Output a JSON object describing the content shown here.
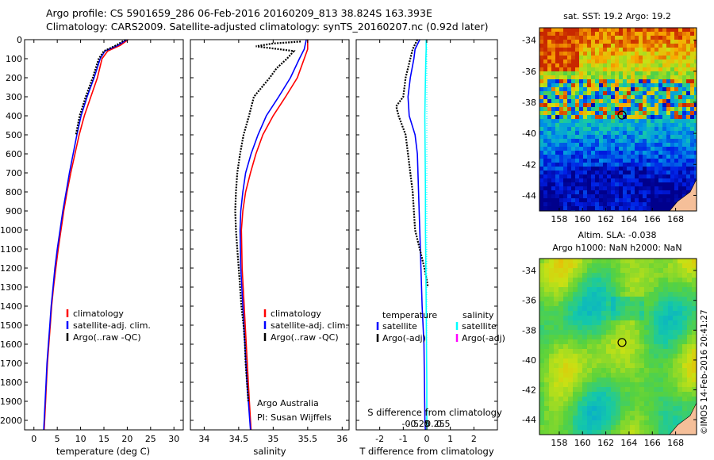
{
  "header": {
    "line1": "Argo profile: CS 5901659_286 06-Feb-2016 20160209_813 38.824S 163.393E",
    "line2": "Climatology: CARS2009. Satellite-adjusted climatology: synTS_20160207.nc (0.92d later)"
  },
  "colors": {
    "climatology": "#ff0000",
    "satellite": "#0000ff",
    "argo": "#000000",
    "sal_satellite": "#00ffff",
    "sal_argo": "#ff00ff",
    "land": "#f5bf99"
  },
  "chart_data": [
    {
      "type": "line",
      "name": "temperature-profile",
      "xlabel": "temperature (deg C)",
      "ylim": [
        2050,
        0
      ],
      "xlim": [
        -2,
        32
      ],
      "x_ticks": [
        "0",
        "5",
        "10",
        "15",
        "20",
        "25",
        "30"
      ],
      "x_tick_values": [
        0,
        5,
        10,
        15,
        20,
        25,
        30
      ],
      "y_ticks": [
        0,
        100,
        200,
        300,
        400,
        500,
        600,
        700,
        800,
        900,
        1000,
        1100,
        1200,
        1300,
        1400,
        1500,
        1600,
        1700,
        1800,
        1900,
        2000
      ],
      "series": [
        {
          "name": "climatology",
          "color": "#ff0000",
          "depth": [
            0,
            30,
            60,
            100,
            200,
            300,
            400,
            500,
            600,
            700,
            800,
            900,
            1000,
            1100,
            1200,
            1300,
            1400,
            1500,
            1600,
            1700,
            1800,
            1900,
            2000,
            2050
          ],
          "values": [
            20.2,
            18.5,
            15.8,
            14.6,
            13.6,
            12.2,
            10.8,
            9.7,
            8.8,
            7.9,
            7.1,
            6.4,
            5.8,
            5.2,
            4.7,
            4.2,
            3.8,
            3.5,
            3.2,
            2.9,
            2.7,
            2.5,
            2.3,
            2.2
          ]
        },
        {
          "name": "satellite-adj. clim.",
          "color": "#0000ff",
          "depth": [
            0,
            30,
            60,
            100,
            200,
            300,
            400,
            500,
            600,
            700,
            800,
            900,
            1000,
            1100,
            1200,
            1300,
            1400,
            1500,
            1600,
            1700,
            1800,
            1900,
            2000,
            2050
          ],
          "values": [
            19.9,
            18.0,
            15.2,
            14.2,
            12.9,
            11.4,
            10.1,
            9.2,
            8.4,
            7.6,
            6.9,
            6.2,
            5.6,
            5.0,
            4.5,
            4.1,
            3.7,
            3.4,
            3.1,
            2.8,
            2.6,
            2.4,
            2.2,
            2.1
          ]
        },
        {
          "name": "Argo(..raw -QC)",
          "color": "#000000",
          "depth": [
            0,
            30,
            60,
            100,
            200,
            300,
            400,
            500
          ],
          "values": [
            19.6,
            17.6,
            15.0,
            13.9,
            12.6,
            11.1,
            9.8,
            9.0
          ]
        }
      ],
      "legend": [
        "climatology",
        "satellite-adj. clim.",
        "Argo(..raw -QC)"
      ]
    },
    {
      "type": "line",
      "name": "salinity-profile",
      "xlabel": "salinity",
      "ylim": [
        2050,
        0
      ],
      "xlim": [
        33.8,
        36.1
      ],
      "x_ticks": [
        "34",
        "34.5",
        "35",
        "35.5",
        "36"
      ],
      "x_tick_values": [
        34,
        34.5,
        35,
        35.5,
        36
      ],
      "series": [
        {
          "name": "climatology",
          "color": "#ff0000",
          "depth": [
            0,
            50,
            100,
            200,
            300,
            400,
            500,
            600,
            700,
            800,
            900,
            1000,
            1200,
            1400,
            1600,
            1800,
            2000,
            2050
          ],
          "values": [
            35.5,
            35.5,
            35.45,
            35.35,
            35.18,
            35.0,
            34.85,
            34.75,
            34.67,
            34.6,
            34.56,
            34.54,
            34.55,
            34.58,
            34.61,
            34.64,
            34.67,
            34.68
          ]
        },
        {
          "name": "satellite-adj. clim.",
          "color": "#0000ff",
          "depth": [
            0,
            50,
            100,
            200,
            300,
            400,
            500,
            600,
            700,
            800,
            900,
            1000,
            1200,
            1400,
            1600,
            1800,
            2000,
            2050
          ],
          "values": [
            35.48,
            35.45,
            35.38,
            35.25,
            35.08,
            34.9,
            34.78,
            34.68,
            34.6,
            34.56,
            34.53,
            34.52,
            34.53,
            34.56,
            34.59,
            34.62,
            34.66,
            34.67
          ]
        },
        {
          "name": "Argo(..raw -QC)",
          "color": "#000000",
          "depth": [
            10,
            20,
            35,
            60,
            100,
            150,
            200,
            300,
            400,
            500,
            600,
            700,
            800,
            900,
            1000,
            1100,
            1200,
            1300,
            1400,
            1500,
            1600,
            1700,
            1800,
            1900
          ],
          "values": [
            35.4,
            35.0,
            34.75,
            35.3,
            35.2,
            35.05,
            34.95,
            34.72,
            34.65,
            34.57,
            34.52,
            34.48,
            34.46,
            34.45,
            34.46,
            34.48,
            34.5,
            34.52,
            34.54,
            34.57,
            34.59,
            34.6,
            34.62,
            34.64
          ]
        }
      ],
      "legend": [
        "climatology",
        "satellite-adj. clim.",
        "Argo(..raw -QC)"
      ],
      "annotations": [
        "Argo Australia",
        "PI: Susan Wijffels"
      ]
    },
    {
      "type": "line",
      "name": "difference-profile",
      "xlabel": "T difference from climatology",
      "x2label": "S difference from climatology",
      "ylim": [
        2050,
        0
      ],
      "xlim": [
        -3,
        3
      ],
      "x_ticks": [
        "-2",
        "-1",
        "0",
        "1",
        "2"
      ],
      "x_tick_values": [
        -2,
        -1,
        0,
        1,
        2
      ],
      "x2_ticks": [
        "-0.5",
        "-0.25",
        "0",
        "0.25",
        "0.5"
      ],
      "x2_tick_values": [
        -0.5,
        -0.25,
        0,
        0.25,
        0.5
      ],
      "series": [
        {
          "name": "temperature satellite",
          "color": "#0000ff",
          "depth": [
            0,
            50,
            100,
            200,
            300,
            400,
            500,
            600,
            800,
            1000,
            1200,
            1400,
            1600,
            1800,
            2000,
            2050
          ],
          "values": [
            -0.3,
            -0.5,
            -0.55,
            -0.7,
            -0.8,
            -0.75,
            -0.5,
            -0.4,
            -0.35,
            -0.3,
            -0.25,
            -0.2,
            -0.12,
            -0.1,
            -0.08,
            -0.06
          ]
        },
        {
          "name": "temperature Argo(-adj)",
          "color": "#000000",
          "depth": [
            0,
            50,
            100,
            200,
            300,
            350,
            400,
            500,
            600,
            700,
            800,
            900,
            1000,
            1100,
            1200,
            1300
          ],
          "values": [
            -0.4,
            -0.6,
            -0.7,
            -0.9,
            -1.0,
            -1.3,
            -1.2,
            -0.9,
            -0.8,
            -0.7,
            -0.6,
            -0.55,
            -0.5,
            -0.3,
            -0.1,
            0.05
          ]
        },
        {
          "name": "salinity satellite",
          "color": "#00ffff",
          "depth": [
            0,
            50,
            100,
            200,
            400,
            600,
            800,
            1000,
            1200,
            1400,
            1600,
            1800,
            2000,
            2050
          ],
          "values": [
            -0.02,
            -0.02,
            -0.03,
            -0.04,
            -0.06,
            -0.05,
            -0.04,
            -0.04,
            -0.03,
            -0.02,
            -0.01,
            0.0,
            0.0,
            0.0
          ]
        }
      ],
      "legend": {
        "temperature_title": "temperature",
        "salinity_title": "salinity",
        "items": [
          "satellite",
          "Argo(-adj)",
          "satellite",
          "Argo(-adj)"
        ]
      }
    },
    {
      "type": "heatmap",
      "name": "sst-map",
      "title": "sat. SST: 19.2  Argo: 19.2",
      "x_ticks": [
        "158",
        "160",
        "162",
        "164",
        "166",
        "168"
      ],
      "y_ticks": [
        "-34",
        "-36",
        "-38",
        "-40",
        "-42",
        "-44"
      ],
      "marker": [
        163.393,
        -38.824
      ]
    },
    {
      "type": "heatmap",
      "name": "sla-map",
      "title_line1": "Altim. SLA: -0.038",
      "title_line2": "Argo h1000: NaN h2000: NaN",
      "x_ticks": [
        "158",
        "160",
        "162",
        "164",
        "166",
        "168"
      ],
      "y_ticks": [
        "-34",
        "-36",
        "-38",
        "-40",
        "-42",
        "-44"
      ],
      "marker": [
        163.393,
        -38.824
      ]
    }
  ],
  "footer": {
    "stamp": "©IMOS 14-Feb-2016 20:41:27"
  }
}
